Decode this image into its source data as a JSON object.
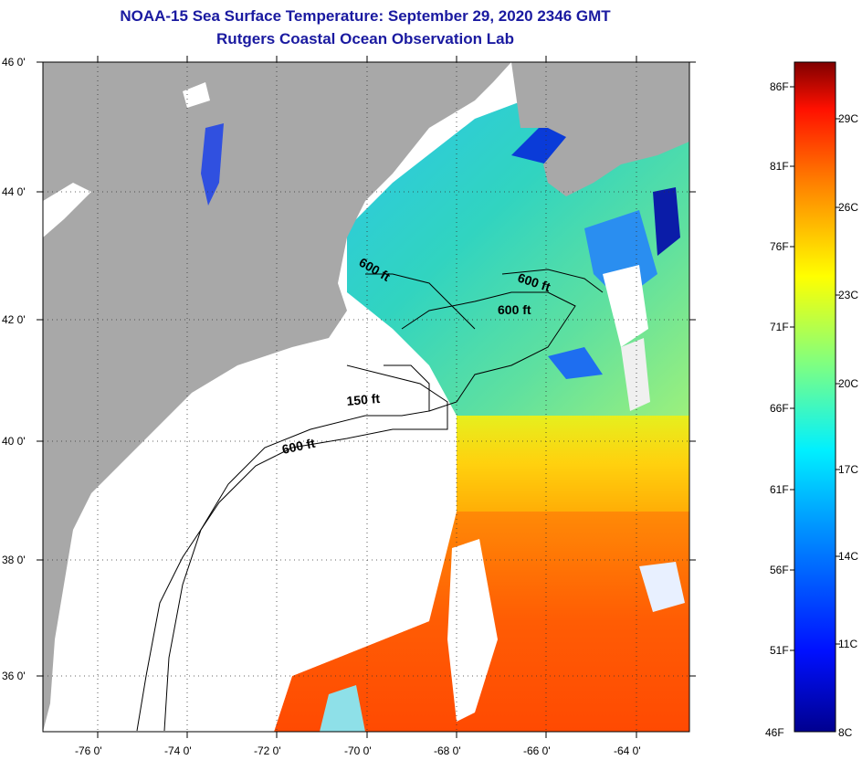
{
  "header": {
    "title": "NOAA-15 Sea Surface Temperature:  September 29, 2020 2346 GMT",
    "subtitle": "Rutgers Coastal Ocean Observation Lab"
  },
  "axes": {
    "lat_ticks": [
      "46 0'",
      "44 0'",
      "42 0'",
      "40 0'",
      "38 0'",
      "36 0'"
    ],
    "lon_ticks": [
      "-76 0'",
      "-74 0'",
      "-72 0'",
      "-70 0'",
      "-68 0'",
      "-66 0'",
      "-64 0'"
    ]
  },
  "contour_labels": {
    "a": "600 ft",
    "b": "600 ft",
    "c": "600 ft",
    "d": "150 ft",
    "e": "600 ft"
  },
  "colorbar": {
    "fahrenheit": [
      "86F",
      "81F",
      "76F",
      "71F",
      "66F",
      "61F",
      "56F",
      "51F",
      "46F"
    ],
    "celsius": [
      "29C",
      "26C",
      "23C",
      "20C",
      "17C",
      "14C",
      "11C",
      "8C"
    ]
  },
  "colors": {
    "land": "#a8a8a8",
    "cloud": "#ffffff",
    "title": "#1a1aa0"
  }
}
